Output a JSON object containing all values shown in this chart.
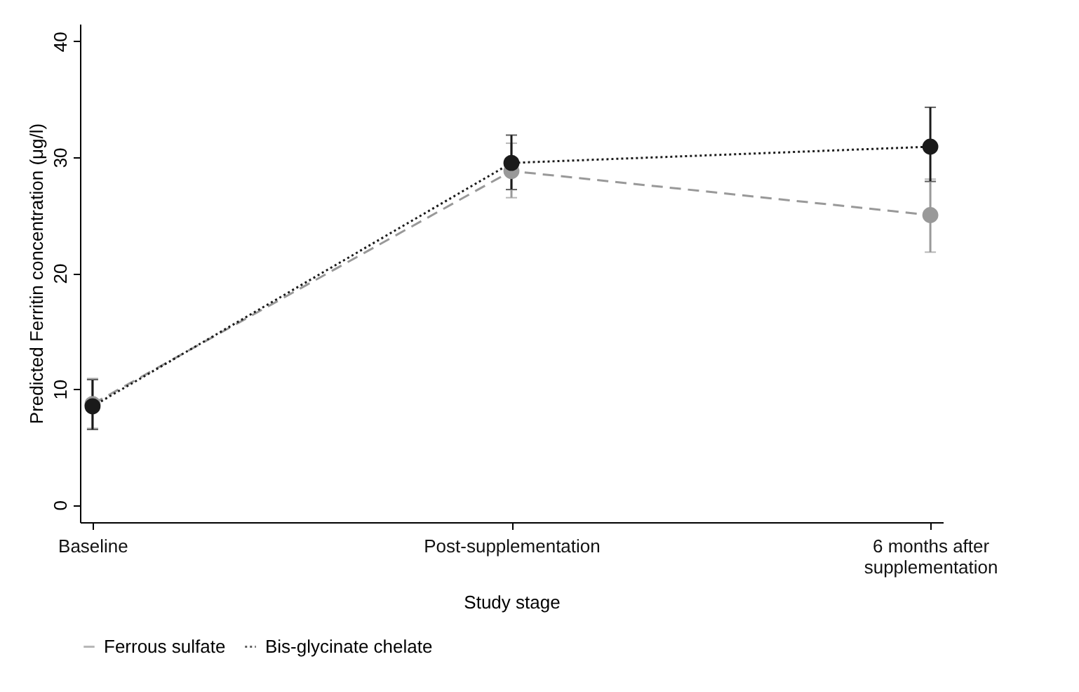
{
  "chart_data": {
    "type": "line",
    "xlabel": "Study stage",
    "ylabel": "Predicted Ferritin concentration (μg/l)",
    "categories": [
      "Baseline",
      "Post-supplementation",
      "6 months after supplementation"
    ],
    "series": [
      {
        "name": "Ferrous sulfate",
        "color": "#999999",
        "line_style": "dashed",
        "values": [
          8.7,
          28.8,
          25.0
        ],
        "errors": [
          [
            6.6,
            10.9
          ],
          [
            26.5,
            31.2
          ],
          [
            21.8,
            28.1
          ]
        ]
      },
      {
        "name": "Bis-glycinate chelate",
        "color": "#1a1a1a",
        "line_style": "dotted",
        "values": [
          8.5,
          29.5,
          30.9
        ],
        "errors": [
          [
            6.5,
            10.8
          ],
          [
            27.2,
            31.9
          ],
          [
            27.9,
            34.3
          ]
        ]
      }
    ],
    "ylim": [
      -1.5,
      41.5
    ],
    "yticks": [
      0,
      10,
      20,
      30,
      40
    ],
    "grid": false,
    "legend": "bottom",
    "marker": "circle"
  }
}
